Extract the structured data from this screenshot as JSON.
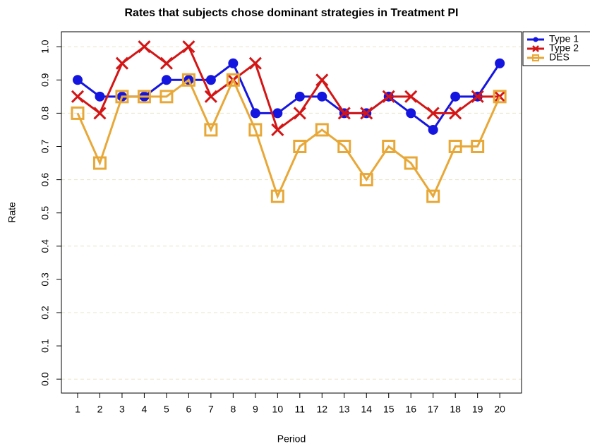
{
  "chart_data": {
    "type": "line",
    "title": "Rates that subjects chose dominant strategies in Treatment PI",
    "x_label": "Period",
    "y_label": "Rate",
    "x": [
      1,
      2,
      3,
      4,
      5,
      6,
      7,
      8,
      9,
      10,
      11,
      12,
      13,
      14,
      15,
      16,
      17,
      18,
      19,
      20
    ],
    "series": [
      {
        "name": "Type 1",
        "color": "#1515e0",
        "marker": "circle",
        "values": [
          0.9,
          0.85,
          0.85,
          0.85,
          0.9,
          0.9,
          0.9,
          0.95,
          0.8,
          0.8,
          0.85,
          0.85,
          0.8,
          0.8,
          0.85,
          0.8,
          0.75,
          0.85,
          0.85,
          0.95
        ]
      },
      {
        "name": "Type 2",
        "color": "#d41515",
        "marker": "cross",
        "values": [
          0.85,
          0.8,
          0.95,
          1.0,
          0.95,
          1.0,
          0.85,
          0.9,
          0.95,
          0.75,
          0.8,
          0.9,
          0.8,
          0.8,
          0.85,
          0.85,
          0.8,
          0.8,
          0.85,
          0.85
        ]
      },
      {
        "name": "DES",
        "color": "#e8a838",
        "marker": "square",
        "values": [
          0.8,
          0.65,
          0.85,
          0.85,
          0.85,
          0.9,
          0.75,
          0.9,
          0.75,
          0.55,
          0.7,
          0.75,
          0.7,
          0.6,
          0.7,
          0.65,
          0.55,
          0.7,
          0.7,
          0.85
        ]
      }
    ],
    "xlim": [
      0.27,
      20.98
    ],
    "ylim": [
      -0.042,
      1.045
    ],
    "xticks": [
      1,
      2,
      3,
      4,
      5,
      6,
      7,
      8,
      9,
      10,
      11,
      12,
      13,
      14,
      15,
      16,
      17,
      18,
      19,
      20
    ],
    "yticks": [
      {
        "value": 0,
        "label": "0.0"
      },
      0.1,
      0.2,
      0.3,
      0.4,
      0.5,
      0.6,
      0.7,
      0.8,
      0.9,
      {
        "value": 1,
        "label": "1.0"
      }
    ],
    "gridlines": [
      0,
      0.2,
      0.4,
      0.6,
      0.8,
      1.0
    ],
    "grid_color": "#e8e4c8",
    "legend": "top-right"
  }
}
